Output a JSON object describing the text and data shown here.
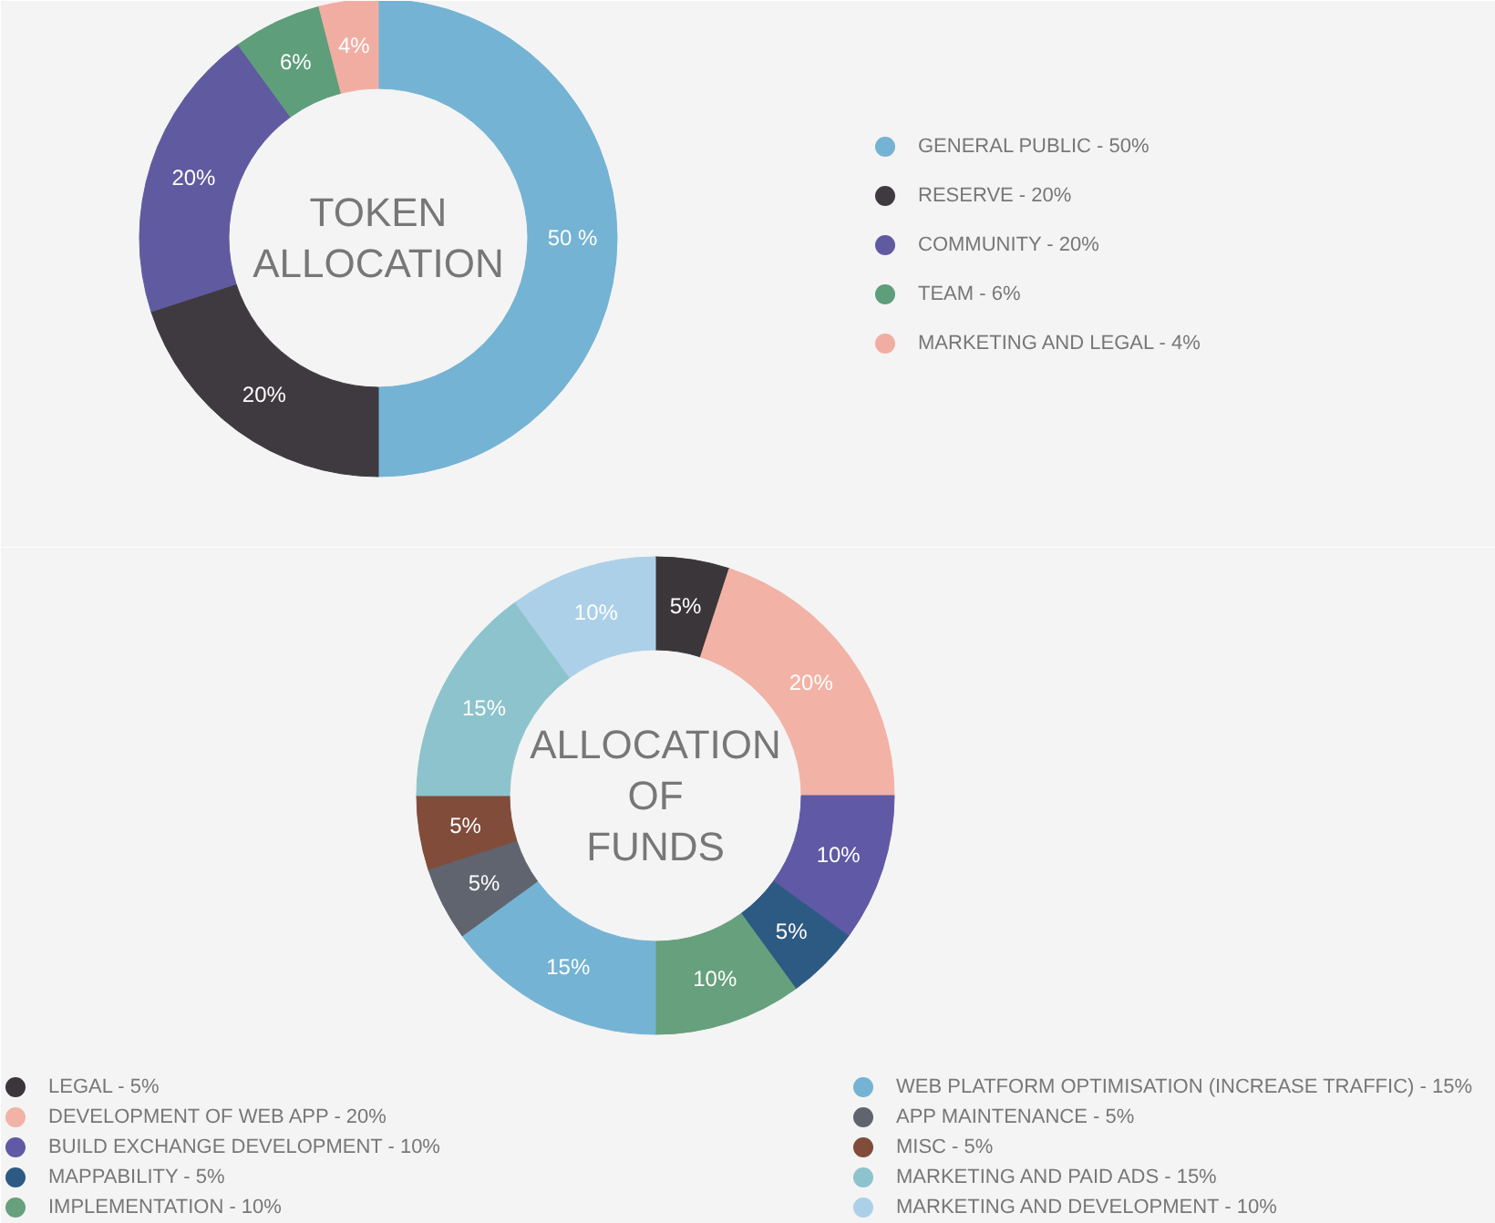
{
  "chart_data": [
    {
      "type": "donut",
      "title": "TOKEN ALLOCATION",
      "legend": "right",
      "categories": [
        "GENERAL PUBLIC - 50%",
        "RESERVE - 20%",
        "COMMUNITY - 20%",
        "TEAM - 6%",
        "MARKETING AND LEGAL - 4%"
      ],
      "values": [
        50,
        20,
        20,
        6,
        4
      ],
      "value_labels": [
        "50 %",
        "20%",
        "20%",
        "6%",
        "4%"
      ],
      "colors": [
        "#74b3d3",
        "#3f3a3f",
        "#605aa0",
        "#5e9e7a",
        "#f2ada3"
      ]
    },
    {
      "type": "donut",
      "title": "ALLOCATION OF FUNDS",
      "legend": "bottom",
      "categories": [
        "LEGAL - 5%",
        "DEVELOPMENT OF WEB APP - 20%",
        "BUILD EXCHANGE DEVELOPMENT - 10%",
        "MAPPABILITY - 5%",
        "IMPLEMENTATION - 10%",
        "WEB PLATFORM OPTIMISATION (INCREASE TRAFFIC) - 15%",
        "APP MAINTENANCE - 5%",
        "MISC - 5%",
        "MARKETING AND PAID ADS - 15%",
        "MARKETING AND DEVELOPMENT - 10%"
      ],
      "values": [
        5,
        20,
        10,
        5,
        10,
        15,
        5,
        5,
        15,
        10
      ],
      "value_labels": [
        "5%",
        "20%",
        "10%",
        "5%",
        "10%",
        "15%",
        "5%",
        "5%",
        "15%",
        "10%"
      ],
      "colors": [
        "#3a3639",
        "#f2b2a6",
        "#6059a5",
        "#2d5a83",
        "#66a07c",
        "#74b3d3",
        "#5f646e",
        "#814c3a",
        "#8cc3cc",
        "#acd0e8"
      ]
    }
  ]
}
